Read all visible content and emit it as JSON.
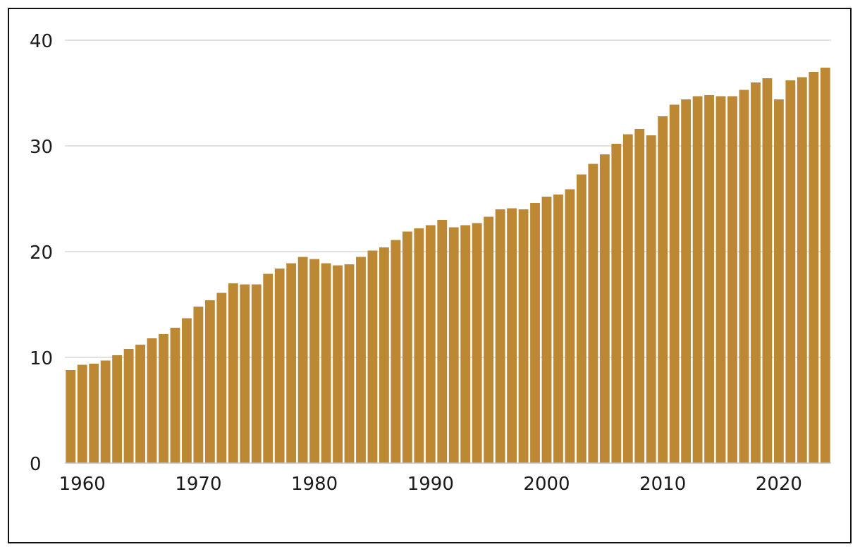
{
  "chart_data": {
    "type": "bar",
    "title": "",
    "xlabel": "",
    "ylabel": "",
    "ylim": [
      0,
      40
    ],
    "yticks": [
      0,
      10,
      20,
      30,
      40
    ],
    "xtick_labels": [
      "1960",
      "1970",
      "1980",
      "1990",
      "2000",
      "2010",
      "2020"
    ],
    "grid": "horizontal",
    "bar_color": "#BC8834",
    "gridline_color": "#c4c4c4",
    "categories": [
      1959,
      1960,
      1961,
      1962,
      1963,
      1964,
      1965,
      1966,
      1967,
      1968,
      1969,
      1970,
      1971,
      1972,
      1973,
      1974,
      1975,
      1976,
      1977,
      1978,
      1979,
      1980,
      1981,
      1982,
      1983,
      1984,
      1985,
      1986,
      1987,
      1988,
      1989,
      1990,
      1991,
      1992,
      1993,
      1994,
      1995,
      1996,
      1997,
      1998,
      1999,
      2000,
      2001,
      2002,
      2003,
      2004,
      2005,
      2006,
      2007,
      2008,
      2009,
      2010,
      2011,
      2012,
      2013,
      2014,
      2015,
      2016,
      2017,
      2018,
      2019,
      2020,
      2021,
      2022,
      2023,
      2024
    ],
    "values": [
      8.8,
      9.3,
      9.4,
      9.7,
      10.2,
      10.8,
      11.2,
      11.8,
      12.2,
      12.8,
      13.7,
      14.8,
      15.4,
      16.1,
      17.0,
      16.9,
      16.9,
      17.9,
      18.4,
      18.9,
      19.5,
      19.3,
      18.9,
      18.7,
      18.8,
      19.5,
      20.1,
      20.4,
      21.1,
      21.9,
      22.2,
      22.5,
      23.0,
      22.3,
      22.5,
      22.7,
      23.3,
      24.0,
      24.1,
      24.0,
      24.6,
      25.2,
      25.4,
      25.9,
      27.3,
      28.3,
      29.2,
      30.2,
      31.1,
      31.6,
      31.0,
      32.8,
      33.9,
      34.4,
      34.7,
      34.8,
      34.7,
      34.7,
      35.3,
      36.0,
      36.4,
      34.4,
      36.2,
      36.5,
      37.0,
      37.4
    ]
  }
}
